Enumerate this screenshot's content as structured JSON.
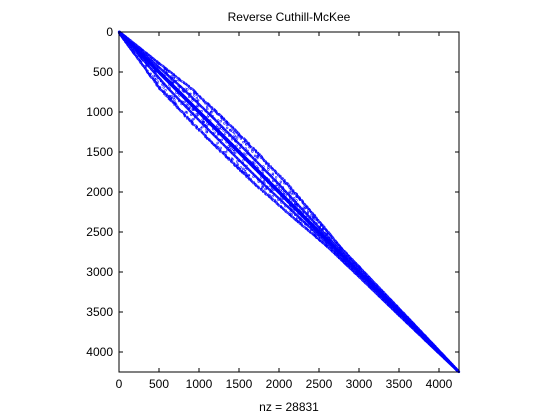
{
  "chart_data": {
    "type": "scatter",
    "title": "Reverse Cuthill-McKee",
    "xlabel": "nz = 28831",
    "ylabel": "",
    "matrix_size": 4250,
    "xlim": [
      0,
      4250
    ],
    "ylim": [
      4250,
      0
    ],
    "y_reversed": true,
    "grid": false,
    "legend": "none",
    "marker_color": "#0000ff",
    "x_ticks": [
      0,
      500,
      1000,
      1500,
      2000,
      2500,
      3000,
      3500,
      4000
    ],
    "y_ticks": [
      0,
      500,
      1000,
      1500,
      2000,
      2500,
      3000,
      3500,
      4000
    ],
    "bandwidth_profile": [
      {
        "row": 0,
        "halfwidth": 10
      },
      {
        "row": 300,
        "halfwidth": 90
      },
      {
        "row": 700,
        "halfwidth": 200
      },
      {
        "row": 1100,
        "halfwidth": 230
      },
      {
        "row": 1500,
        "halfwidth": 225
      },
      {
        "row": 1900,
        "halfwidth": 210
      },
      {
        "row": 2300,
        "halfwidth": 150
      },
      {
        "row": 2700,
        "halfwidth": 80
      },
      {
        "row": 3100,
        "halfwidth": 60
      },
      {
        "row": 3500,
        "halfwidth": 45
      },
      {
        "row": 3900,
        "halfwidth": 25
      },
      {
        "row": 4250,
        "halfwidth": 5
      }
    ]
  }
}
